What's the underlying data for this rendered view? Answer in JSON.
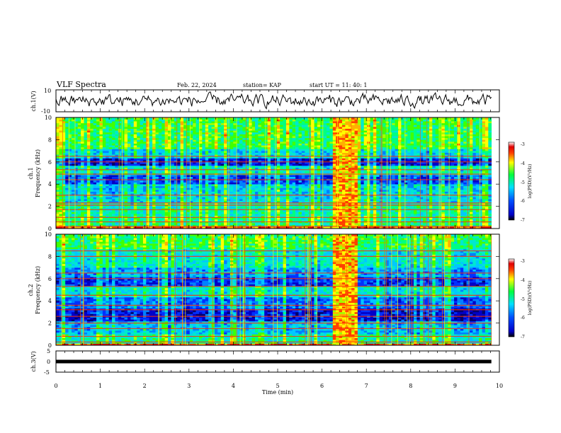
{
  "header": {
    "title": "VLF Spectra",
    "date": "Feb. 22, 2024",
    "station": "station= KAP",
    "start_ut": "start  UT =   11: 40: 1"
  },
  "chart_data": {
    "type": "spectrogram",
    "xlabel": "Time  (min)",
    "xlim": [
      0,
      10
    ],
    "xticks": [
      "0",
      "1",
      "2",
      "3",
      "4",
      "5",
      "6",
      "7",
      "8",
      "9",
      "10"
    ],
    "panels": [
      {
        "key": "ch1_waveform",
        "type": "line",
        "ylabel": "ch.1(V)",
        "ylim": [
          -10,
          10
        ],
        "yticks": [
          "10",
          "-10"
        ],
        "approx_level": 0,
        "approx_amplitude": 4,
        "series_color": "#000000"
      },
      {
        "key": "ch1_spectrogram",
        "type": "heatmap",
        "ylabel_line1": "ch.1",
        "ylabel_line2": "Frequency  (kHz)",
        "ylim": [
          0,
          10
        ],
        "yticks": [
          "0",
          "2",
          "4",
          "6",
          "8",
          "10"
        ],
        "colorbar": {
          "label": "log(PSD)(V²/Hz)",
          "range": [
            -7,
            -3
          ],
          "ticks": [
            "-3",
            "-4",
            "-5",
            "-6",
            "-7"
          ]
        },
        "data_end_min": 9.82,
        "enhanced_interval_min": [
          6.25,
          6.8
        ],
        "horizontal_lines_khz": [
          0.2,
          0.6,
          1.0,
          1.7,
          2.1,
          2.3,
          3.0,
          4.4,
          4.9,
          5.3,
          6.0,
          6.5
        ]
      },
      {
        "key": "ch2_spectrogram",
        "type": "heatmap",
        "ylabel_line1": "ch.2",
        "ylabel_line2": "Frequency  (kHz)",
        "ylim": [
          0,
          10
        ],
        "yticks": [
          "0",
          "2",
          "4",
          "6",
          "8",
          "10"
        ],
        "colorbar": {
          "label": "log(PSD)(V²/Hz)",
          "range": [
            -7,
            -3
          ],
          "ticks": [
            "-3",
            "-4",
            "-5",
            "-6",
            "-7"
          ]
        },
        "data_end_min": 9.82,
        "enhanced_interval_min": [
          6.25,
          6.8
        ],
        "horizontal_lines_khz": [
          0.3,
          0.8,
          1.5,
          2.0,
          2.6,
          3.2,
          3.6,
          4.5,
          5.3,
          6.0,
          6.5,
          8.0,
          8.5
        ]
      },
      {
        "key": "ch3_waveform",
        "type": "line",
        "ylabel": "ch.3(V)",
        "ylim": [
          -5,
          5
        ],
        "yticks": [
          "5",
          "0",
          "-5"
        ],
        "approx_level": 0,
        "series_color": "#000000"
      }
    ]
  }
}
